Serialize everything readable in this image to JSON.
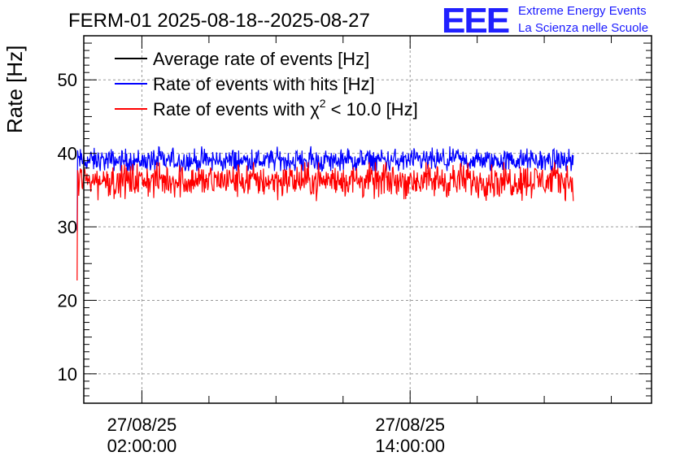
{
  "header": {
    "title": "FERM-01 2025-08-18--2025-08-27"
  },
  "logo": {
    "letters": "EEE",
    "line1": "Extreme Energy Events",
    "line2": "La Scienza nelle Scuole",
    "color": "#2020ff"
  },
  "chart_data": {
    "type": "line",
    "title": "FERM-01 2025-08-18--2025-08-27",
    "xlabel": "",
    "ylabel": "Rate [Hz]",
    "ylim": [
      6,
      56
    ],
    "yticks": [
      "10",
      "20",
      "30",
      "40",
      "50"
    ],
    "x_unit": "hours since 27/08/25 00:00:00",
    "xlim": [
      -0.6,
      24.8
    ],
    "xticks": [
      {
        "date": "27/08/25",
        "time": "02:00:00",
        "x": 2
      },
      {
        "date": "27/08/25",
        "time": "14:00:00",
        "x": 14
      }
    ],
    "grid": true,
    "legend_position": "top-left",
    "series": [
      {
        "name": "Average rate of events [Hz]",
        "color": "#000000",
        "mean": null,
        "values": []
      },
      {
        "name": "Rate of events with hits [Hz]",
        "color": "#0000ff",
        "x_start": -0.9,
        "x_end": 21.3,
        "mean": 39.0,
        "noise_range": [
          37.6,
          41.2
        ],
        "initial_drop": 29.5
      },
      {
        "name": "Rate of events with χ2 < 10.0 [Hz]",
        "name_prefix": "Rate of events with χ",
        "name_sup": "2",
        "name_suffix": " < 10.0 [Hz]",
        "color": "#ff0000",
        "x_start": -0.9,
        "x_end": 21.3,
        "mean": 36.3,
        "noise_range": [
          33.5,
          38.8
        ],
        "initial_drop": 22.7
      }
    ]
  }
}
